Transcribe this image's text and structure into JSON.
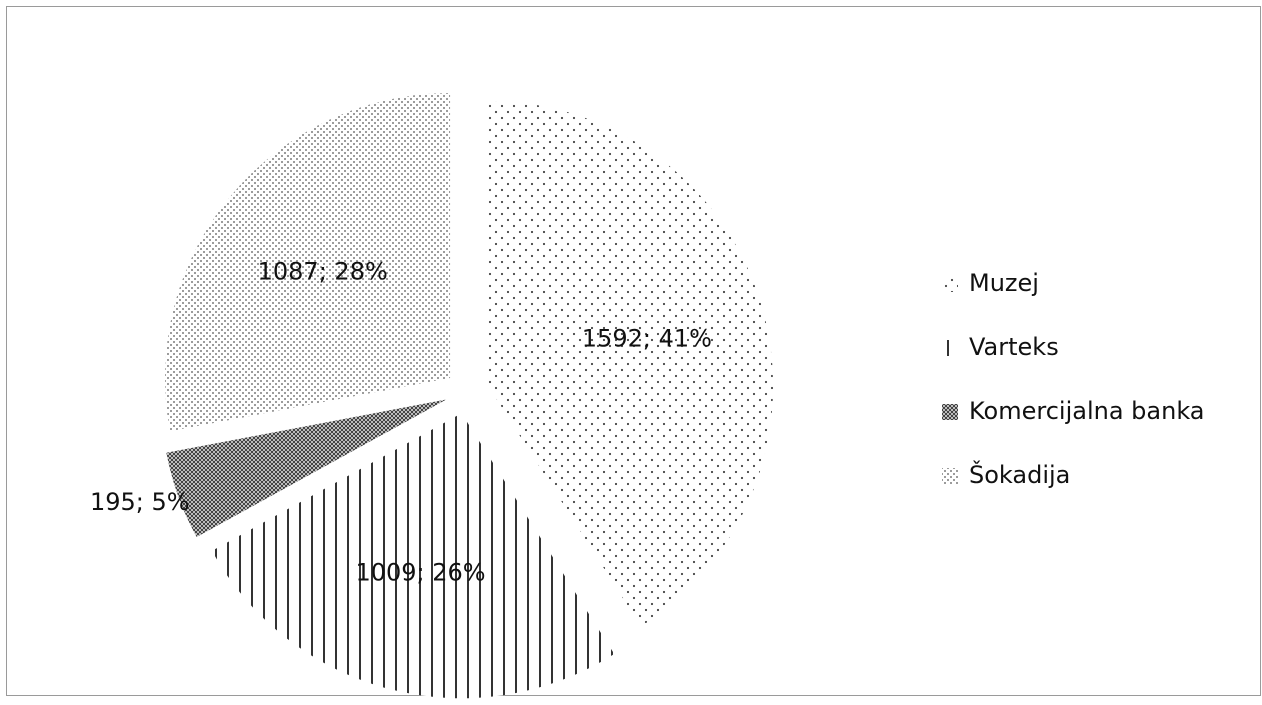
{
  "chart_data": {
    "type": "pie",
    "title": "",
    "series": [
      {
        "name": "Muzej",
        "value": 1592,
        "percent": "41%",
        "label": "1592; 41%",
        "pattern": "dots-sparse"
      },
      {
        "name": "Varteks",
        "value": 1009,
        "percent": "26%",
        "label": "1009; 26%",
        "pattern": "vertical-lines"
      },
      {
        "name": "Komercijalna banka",
        "value": 195,
        "percent": "5%",
        "label": "195; 5%",
        "pattern": "dense-dots"
      },
      {
        "name": "Šokadija",
        "value": 1087,
        "percent": "28%",
        "label": "1087; 28%",
        "pattern": "fine-dots"
      }
    ],
    "legend_position": "right",
    "exploded": true,
    "colors": {
      "pattern": "#333333",
      "background": "#ffffff",
      "text": "#111111"
    }
  }
}
